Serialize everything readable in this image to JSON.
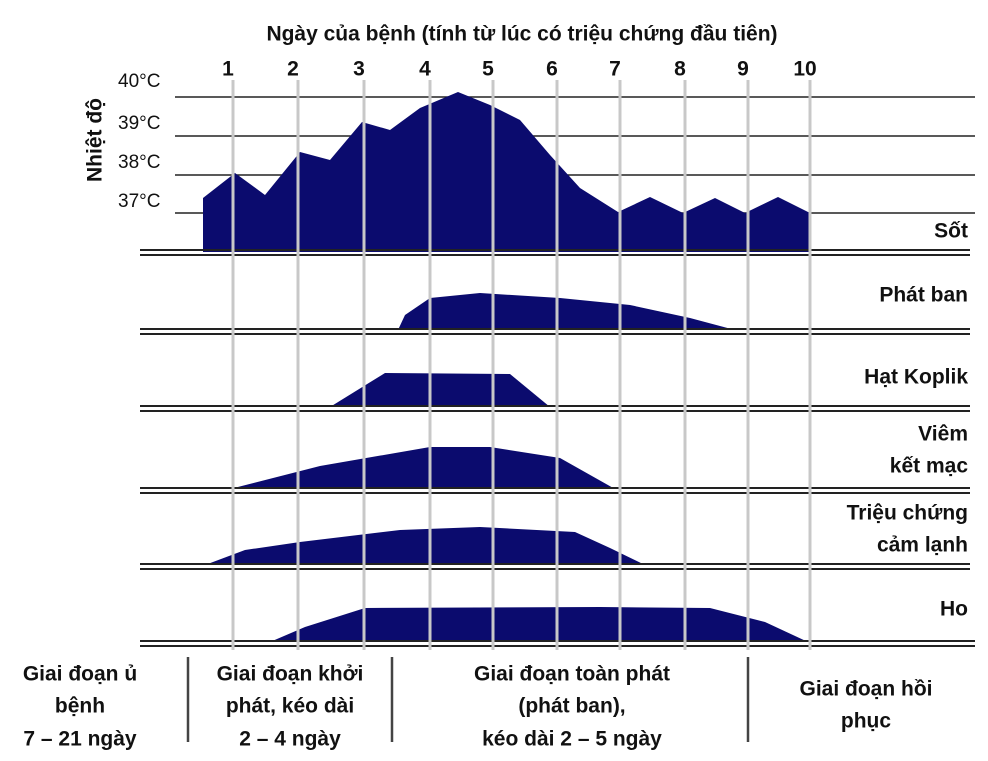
{
  "header": {
    "title": "Ngày của bệnh (tính từ lúc có triệu chứng đầu tiên)"
  },
  "days": [
    "1",
    "2",
    "3",
    "4",
    "5",
    "6",
    "7",
    "8",
    "9",
    "10"
  ],
  "temperature_axis": {
    "label": "Nhiệt độ",
    "ticks": [
      "40°C",
      "39°C",
      "38°C",
      "37°C"
    ]
  },
  "rows": [
    {
      "label": [
        "Sốt"
      ]
    },
    {
      "label": [
        "Phát ban"
      ]
    },
    {
      "label": [
        "Hạt Koplik"
      ]
    },
    {
      "label": [
        "Viêm",
        "kết mạc"
      ]
    },
    {
      "label": [
        "Triệu chứng",
        "cảm lạnh"
      ]
    },
    {
      "label": [
        "Ho"
      ]
    }
  ],
  "stages": [
    {
      "lines": [
        "Giai đoạn ủ",
        "bệnh",
        "7 – 21 ngày"
      ]
    },
    {
      "lines": [
        "Giai đoạn khởi",
        "phát, kéo dài",
        "2 – 4 ngày"
      ]
    },
    {
      "lines": [
        "Giai đoạn toàn phát",
        "(phát ban),",
        "kéo dài 2 – 5 ngày"
      ]
    },
    {
      "lines": [
        "Giai đoạn hồi",
        "phục"
      ]
    }
  ]
}
